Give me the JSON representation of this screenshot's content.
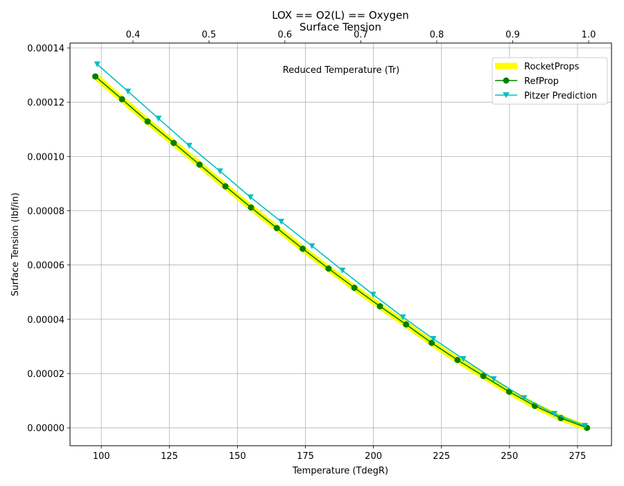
{
  "chart_data": {
    "type": "line",
    "title": "LOX == O2(L) == Oxygen",
    "subtitle": "Surface Tension",
    "xlabel": "Temperature (TdegR)",
    "ylabel": "Surface Tension (lbf/in)",
    "x2label": "Reduced Temperature (Tr)",
    "xlim": [
      88.5,
      287.5
    ],
    "ylim": [
      -6.6e-06,
      0.0001418
    ],
    "x2lim": [
      0.3171,
      1.0301
    ],
    "xticks": [
      "100",
      "125",
      "150",
      "175",
      "200",
      "225",
      "250",
      "275"
    ],
    "x2ticks": [
      "0.4",
      "0.5",
      "0.6",
      "0.7",
      "0.8",
      "0.9",
      "1.0"
    ],
    "yticks": [
      "0.00000",
      "0.00002",
      "0.00004",
      "0.00006",
      "0.00008",
      "0.00010",
      "0.00012",
      "0.00014"
    ],
    "grid": true,
    "legend_position": "top-right",
    "series": [
      {
        "name": "RocketProps",
        "color": "#ffff00",
        "marker": "none",
        "x": [
          97.8,
          107.6,
          117.0,
          126.6,
          136.1,
          145.6,
          155.0,
          164.5,
          174.0,
          183.5,
          193.0,
          202.4,
          212.0,
          221.4,
          230.9,
          240.4,
          249.9,
          259.3,
          268.9,
          278.5
        ],
        "y": [
          0.0001295,
          0.0001211,
          0.0001129,
          0.000105,
          9.7e-05,
          8.9e-05,
          8.12e-05,
          7.36e-05,
          6.6e-05,
          5.87e-05,
          5.16e-05,
          4.48e-05,
          3.81e-05,
          3.13e-05,
          2.5e-05,
          1.91e-05,
          1.33e-05,
          8.1e-06,
          3.6e-06,
          0.0
        ]
      },
      {
        "name": "RefProp",
        "color": "#008000",
        "marker": "circle",
        "x": [
          97.8,
          107.6,
          117.0,
          126.6,
          136.1,
          145.6,
          155.0,
          164.5,
          174.0,
          183.5,
          193.0,
          202.4,
          212.0,
          221.4,
          230.9,
          240.4,
          249.9,
          259.3,
          268.9,
          278.5
        ],
        "y": [
          0.0001295,
          0.0001211,
          0.0001129,
          0.000105,
          9.7e-05,
          8.9e-05,
          8.12e-05,
          7.36e-05,
          6.6e-05,
          5.87e-05,
          5.16e-05,
          4.48e-05,
          3.81e-05,
          3.13e-05,
          2.5e-05,
          1.91e-05,
          1.33e-05,
          8.1e-06,
          3.6e-06,
          0.0
        ]
      },
      {
        "name": "Pitzer Prediction",
        "color": "#00bfbf",
        "marker": "triangle-down",
        "x": [
          98.5,
          109.8,
          121.0,
          132.3,
          143.6,
          154.8,
          166.1,
          177.4,
          188.6,
          199.9,
          210.8,
          222.0,
          233.0,
          244.2,
          255.4,
          266.5,
          277.7
        ],
        "y": [
          0.000134,
          0.000124,
          0.000114,
          0.000104,
          9.46e-05,
          8.5e-05,
          7.6e-05,
          6.7e-05,
          5.8e-05,
          4.91e-05,
          4.08e-05,
          3.28e-05,
          2.54e-05,
          1.8e-05,
          1.1e-05,
          5.2e-06,
          8e-07
        ]
      }
    ]
  }
}
